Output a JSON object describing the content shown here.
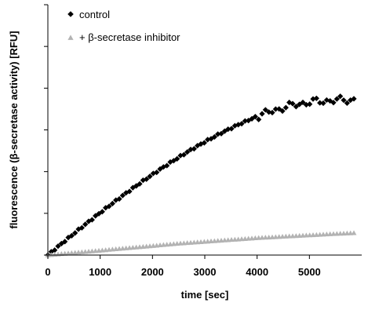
{
  "chart_data": {
    "type": "scatter",
    "title": "",
    "xlabel": "time [sec]",
    "ylabel": "fluorescence (β-secretase activity) [RFU]",
    "xlim": [
      0,
      6000
    ],
    "ylim": [
      0,
      1
    ],
    "x_ticks": [
      "0",
      "1000",
      "2000",
      "3000",
      "4000",
      "5000"
    ],
    "y_ticks_labeled": false,
    "grid": false,
    "legend_position": "top-left",
    "series": [
      {
        "name": "control",
        "marker": "diamond",
        "color": "#000000",
        "points": [
          [
            0,
            0.0
          ],
          [
            300,
            0.052
          ],
          [
            600,
            0.103
          ],
          [
            900,
            0.153
          ],
          [
            1200,
            0.201
          ],
          [
            1500,
            0.248
          ],
          [
            1800,
            0.293
          ],
          [
            2100,
            0.336
          ],
          [
            2400,
            0.377
          ],
          [
            2700,
            0.416
          ],
          [
            3000,
            0.452
          ],
          [
            3300,
            0.486
          ],
          [
            3600,
            0.517
          ],
          [
            3900,
            0.545
          ],
          [
            4200,
            0.569
          ],
          [
            4500,
            0.589
          ],
          [
            4800,
            0.604
          ],
          [
            5100,
            0.613
          ],
          [
            5400,
            0.617
          ],
          [
            5700,
            0.62
          ],
          [
            5900,
            0.62
          ]
        ]
      },
      {
        "name": "+ β-secretase inhibitor",
        "marker": "triangle",
        "color": "#b3b3b3",
        "points": [
          [
            0,
            0.0
          ],
          [
            500,
            0.0093
          ],
          [
            1000,
            0.0185
          ],
          [
            1500,
            0.0278
          ],
          [
            2000,
            0.037
          ],
          [
            2500,
            0.0463
          ],
          [
            3000,
            0.0537
          ],
          [
            3500,
            0.0611
          ],
          [
            4000,
            0.0685
          ],
          [
            4500,
            0.0741
          ],
          [
            5000,
            0.0796
          ],
          [
            5500,
            0.0852
          ],
          [
            5900,
            0.0889
          ]
        ]
      }
    ]
  }
}
